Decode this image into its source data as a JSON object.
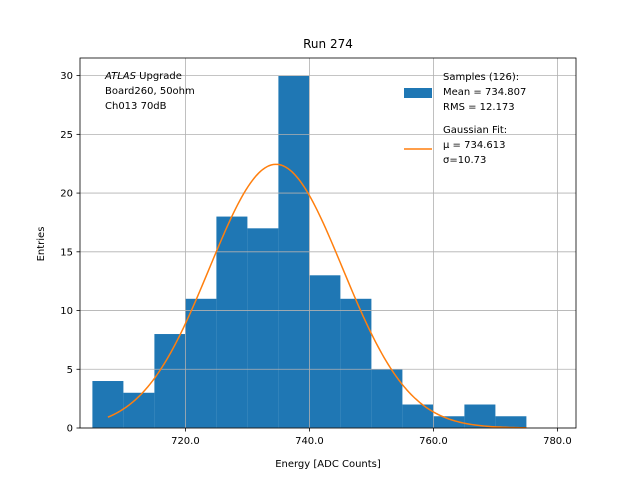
{
  "chart_data": {
    "type": "bar",
    "title": "Run 274",
    "xlabel": "Energy [ADC Counts]",
    "ylabel": "Entries",
    "xlim": [
      703,
      783
    ],
    "ylim": [
      0,
      31.5
    ],
    "grid": true,
    "x_ticks": [
      720,
      740,
      760,
      780
    ],
    "x_tick_labels": [
      "720.0",
      "740.0",
      "760.0",
      "780.0"
    ],
    "y_ticks": [
      0,
      5,
      10,
      15,
      20,
      25,
      30
    ],
    "y_tick_labels": [
      "0",
      "5",
      "10",
      "15",
      "20",
      "25",
      "30"
    ],
    "histogram": {
      "bin_edges": [
        705,
        710,
        715,
        720,
        725,
        730,
        735,
        740,
        745,
        750,
        755,
        760,
        765,
        770,
        775
      ],
      "counts": [
        4,
        3,
        8,
        11,
        18,
        17,
        30,
        13,
        11,
        5,
        2,
        1,
        2,
        1
      ],
      "color": "#1f77b4"
    },
    "gaussian_fit": {
      "mu": 734.613,
      "sigma": 10.73,
      "amplitude": 22.45,
      "x_range": [
        707.5,
        775
      ],
      "color": "#ff7f0e"
    },
    "annotation": {
      "lines": [
        {
          "italic": "ATLAS",
          "rest": " Upgrade"
        },
        {
          "italic": "",
          "rest": " Board260, 50ohm"
        },
        {
          "italic": "",
          "rest": " Ch013 70dB"
        }
      ]
    },
    "legend": {
      "placement": "top-right",
      "entries": [
        {
          "kind": "patch",
          "lines": [
            "Samples (126):",
            " Mean = 734.807",
            " RMS = 12.173"
          ]
        },
        {
          "kind": "line",
          "lines": [
            "Gaussian Fit:",
            " μ = 734.613",
            " σ=10.73"
          ]
        }
      ]
    }
  }
}
